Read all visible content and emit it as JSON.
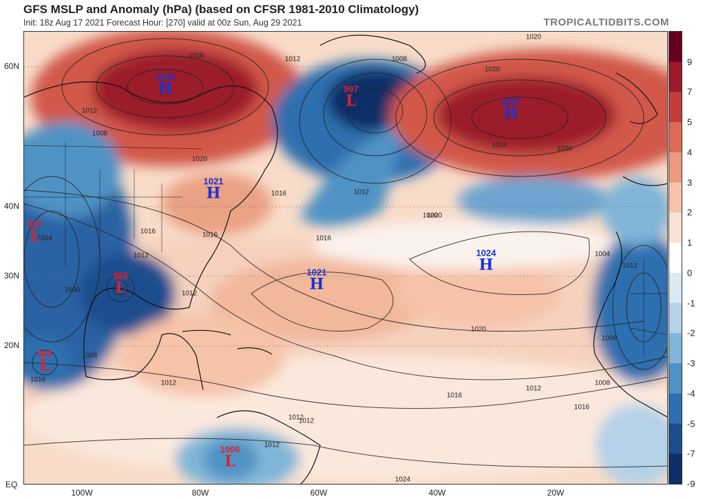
{
  "header": {
    "title": "GFS MSLP and Anomaly (hPa) (based on CFSR 1981-2010 Climatology)",
    "subtitle": "Init: 18z Aug 17 2021   Forecast Hour: [270]   valid at 00z Sun, Aug 29 2021",
    "brand": "TROPICALTIDBITS.COM"
  },
  "colorbar": {
    "labels": [
      "9",
      "7",
      "5",
      "4",
      "3",
      "2",
      "1",
      "0",
      "-1",
      "-2",
      "-3",
      "-4",
      "-5",
      "-7",
      "-9"
    ],
    "colors": [
      "#67001f",
      "#9b1a2a",
      "#c43c3c",
      "#dc6b55",
      "#eb9a7e",
      "#f6c3a8",
      "#fbe3d4",
      "#ffffff",
      "#dbe9f4",
      "#b3d1e7",
      "#80b5d8",
      "#4f93c4",
      "#2f6faf",
      "#1c4e8e",
      "#0d2e66"
    ]
  },
  "axes": {
    "lat_labels": [
      "60N",
      "40N",
      "30N",
      "20N",
      "EQ"
    ],
    "lon_labels": [
      "100W",
      "80W",
      "60W",
      "40W",
      "20W"
    ]
  },
  "pressure_systems": [
    {
      "type": "H",
      "value": "1022",
      "name": "high-canada"
    },
    {
      "type": "L",
      "value": "997",
      "name": "low-labrador-sea"
    },
    {
      "type": "H",
      "value": "1027",
      "name": "high-north-atlantic"
    },
    {
      "type": "H",
      "value": "1021",
      "name": "high-northeast-us"
    },
    {
      "type": "L",
      "value": "997",
      "name": "low-southwest-us"
    },
    {
      "type": "L",
      "value": "985",
      "name": "low-gulf"
    },
    {
      "type": "H",
      "value": "1021",
      "name": "high-west-atlantic"
    },
    {
      "type": "H",
      "value": "1024",
      "name": "high-central-atlantic"
    },
    {
      "type": "L",
      "value": "984",
      "name": "low-east-pacific"
    },
    {
      "type": "L",
      "value": "1006",
      "name": "low-south-america"
    }
  ],
  "isobar_labels": [
    "1016",
    "1012",
    "1008",
    "1012",
    "1020",
    "1016",
    "1016",
    "1020",
    "1020",
    "1024",
    "1020",
    "1016",
    "1012",
    "1008",
    "1012",
    "1016",
    "1020",
    "1012",
    "1004",
    "1008",
    "1012",
    "1016",
    "1008",
    "1000",
    "1004",
    "1012",
    "1016",
    "1016",
    "1012",
    "1012",
    "1012",
    "1024",
    "1020",
    "1012",
    "1008",
    "1020"
  ]
}
